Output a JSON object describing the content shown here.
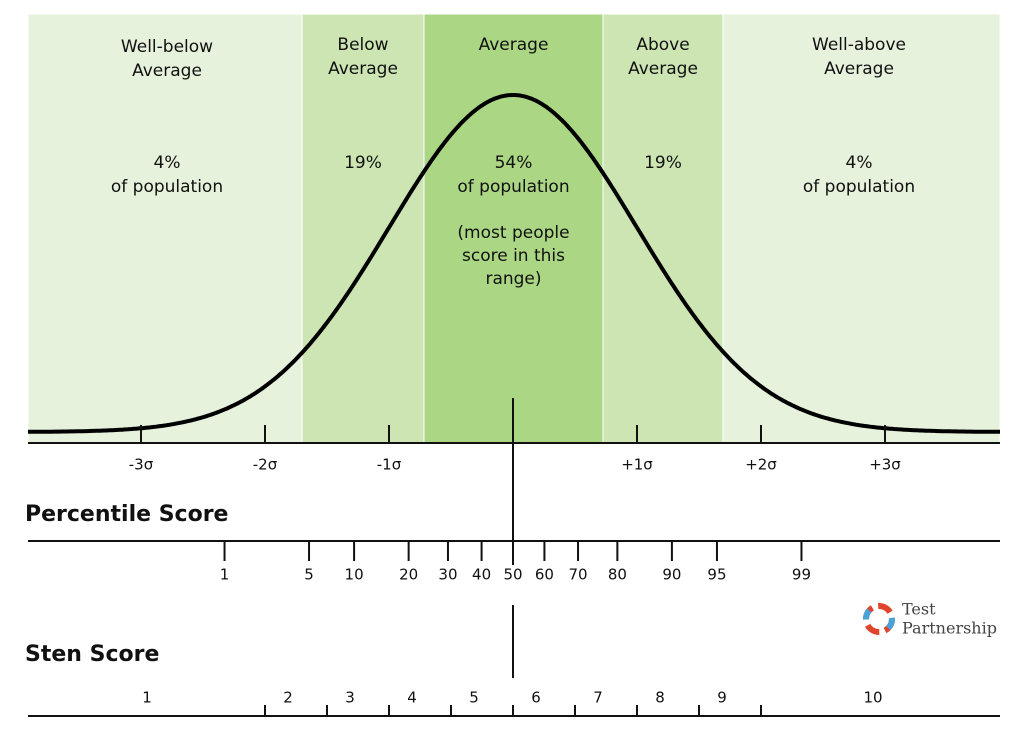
{
  "bands": [
    {
      "label": [
        "Well-below",
        "Average"
      ],
      "share": "4%",
      "note": "of population"
    },
    {
      "label": [
        "Below",
        "Average"
      ],
      "share": "19%"
    },
    {
      "label": [
        "Average"
      ],
      "share": "54%",
      "note": "of population",
      "detail": [
        "(most people",
        "score in this",
        "range)"
      ]
    },
    {
      "label": [
        "Above",
        "Average"
      ],
      "share": "19%"
    },
    {
      "label": [
        "Well-above",
        "Average"
      ],
      "share": "4%",
      "note": "of population"
    }
  ],
  "sigma_labels": [
    "-3σ",
    "-2σ",
    "-1σ",
    "+1σ",
    "+2σ",
    "+3σ"
  ],
  "percentile": {
    "title": "Percentile Score",
    "ticks": [
      1,
      5,
      10,
      20,
      30,
      40,
      50,
      60,
      70,
      80,
      90,
      95,
      99
    ]
  },
  "sten": {
    "title": "Sten Score",
    "labels": [
      "1",
      "2",
      "3",
      "4",
      "5",
      "6",
      "7",
      "8",
      "9",
      "10"
    ]
  },
  "logo": [
    "Test",
    "Partnership"
  ]
}
